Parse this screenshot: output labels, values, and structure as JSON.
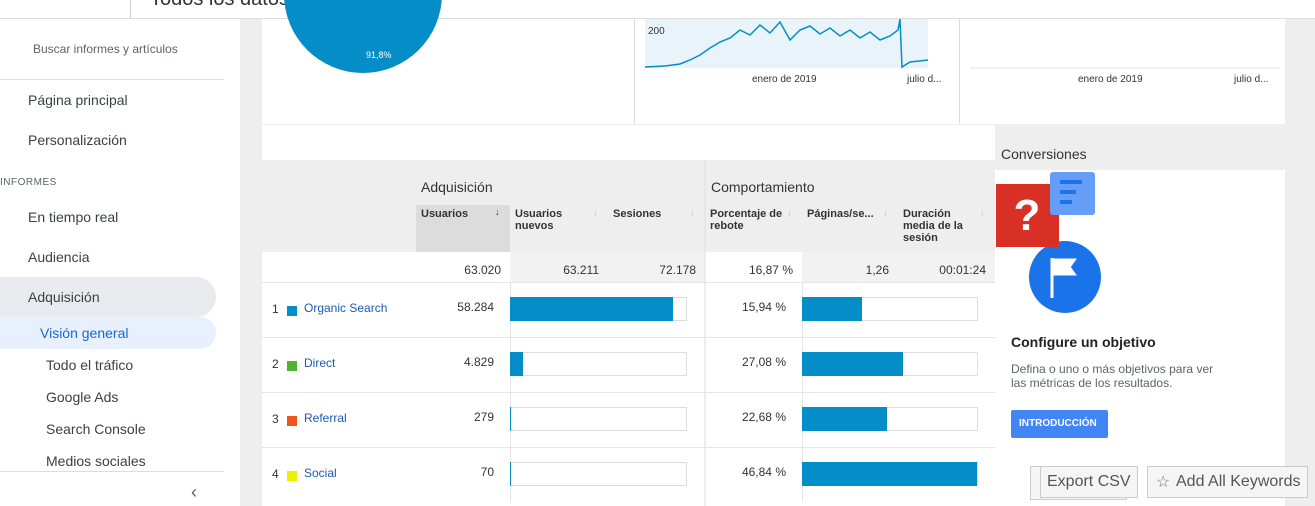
{
  "header": {
    "title": "Todos los datos de sitios web"
  },
  "sidebar": {
    "search": "Buscar informes y artículos",
    "items": [
      "Página principal",
      "Personalización"
    ],
    "section": "INFORMES",
    "reports": [
      "En tiempo real",
      "Audiencia",
      "Adquisición"
    ],
    "subitems": [
      "Visión general",
      "Todo el tráfico",
      "Google Ads",
      "Search Console",
      "Medios sociales"
    ]
  },
  "overview": {
    "pie_label": "91,8%",
    "chart1": {
      "ytick": "200",
      "xticks": [
        "enero de 2019",
        "julio d..."
      ]
    },
    "chart2": {
      "xticks": [
        "enero de 2019",
        "julio d..."
      ]
    }
  },
  "table": {
    "groups": [
      "Adquisición",
      "Comportamiento"
    ],
    "columns": [
      "Usuarios",
      "Usuarios nuevos",
      "Sesiones",
      "Porcentaje de rebote",
      "Páginas/se...",
      "Duración media de la sesión"
    ],
    "totals": [
      "63.020",
      "63.211",
      "72.178",
      "16,87 %",
      "1,26",
      "00:01:24"
    ],
    "rows": [
      {
        "rank": 1,
        "name": "Organic Search",
        "color": "#058dc7",
        "users": {
          "value": 58284,
          "label": "58.284"
        },
        "bounce": {
          "value": 15.94,
          "label": "15,94 %"
        }
      },
      {
        "rank": 2,
        "name": "Direct",
        "color": "#50b432",
        "users": {
          "value": 4829,
          "label": "4.829"
        },
        "bounce": {
          "value": 27.08,
          "label": "27,08 %"
        }
      },
      {
        "rank": 3,
        "name": "Referral",
        "color": "#ed561b",
        "users": {
          "value": 279,
          "label": "279"
        },
        "bounce": {
          "value": 22.68,
          "label": "22,68 %"
        }
      },
      {
        "rank": 4,
        "name": "Social",
        "color": "#edef00",
        "users": {
          "value": 70,
          "label": "70"
        },
        "bounce": {
          "value": 46.84,
          "label": "46,84 %"
        }
      }
    ]
  },
  "conversions": {
    "title": "Conversiones",
    "heading": "Configure un objetivo",
    "text": "Defina o uno o más objetivos para ver las métricas de los resultados.",
    "button": "INTRODUCCIÓN"
  },
  "extension": {
    "buttons": [
      "Export CSV",
      "Add All Keywords"
    ]
  }
}
